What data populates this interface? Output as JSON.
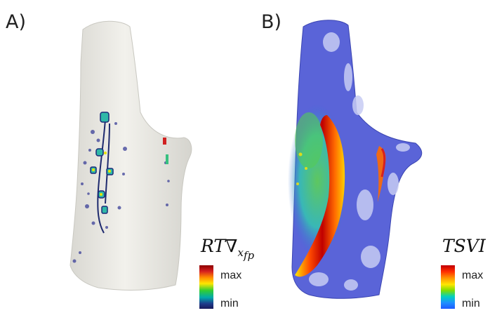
{
  "panels": [
    {
      "label": "A)",
      "colorbar": {
        "title_main": "RT∇",
        "title_sub": "x",
        "title_sub2": "fp",
        "max_label": "max",
        "min_label": "min"
      }
    },
    {
      "label": "B)",
      "colorbar": {
        "title_main": "TSVI",
        "max_label": "max",
        "min_label": "min"
      }
    }
  ],
  "colors": {
    "surface": "#ecebe6",
    "map_b_base": "#5a64d8",
    "map_b_hot": "#e02010"
  }
}
